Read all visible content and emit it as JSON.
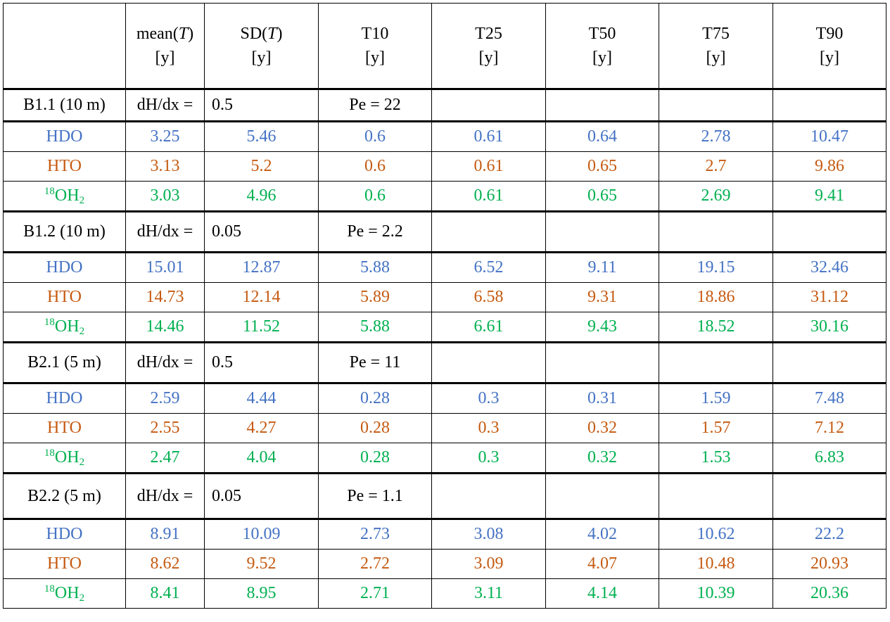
{
  "header": {
    "columns": [
      {
        "line1": "mean(",
        "italic": "T",
        "close": ")",
        "unit": "[y]"
      },
      {
        "line1": "SD(",
        "italic": "T",
        "close": ")",
        "unit": "[y]"
      },
      {
        "line1": "T10",
        "italic": "",
        "close": "",
        "unit": "[y]"
      },
      {
        "line1": "T25",
        "italic": "",
        "close": "",
        "unit": "[y]"
      },
      {
        "line1": "T50",
        "italic": "",
        "close": "",
        "unit": "[y]"
      },
      {
        "line1": "T75",
        "italic": "",
        "close": "",
        "unit": "[y]"
      },
      {
        "line1": "T90",
        "italic": "",
        "close": "",
        "unit": "[y]"
      }
    ]
  },
  "labels": {
    "hdo": "HDO",
    "hto": "HTO",
    "oh2_sup": "18",
    "oh2_main": "OH",
    "oh2_sub": "2",
    "gradient": "dH/dx ="
  },
  "colors": {
    "hdo": "#4472C4",
    "hto": "#C55A11",
    "oh2": "#00B050"
  },
  "sections": [
    {
      "name": "B1.1 (10 m)",
      "gradient": "0.5",
      "pe": "Pe = 22",
      "hdo": [
        "3.25",
        "5.46",
        "0.6",
        "0.61",
        "0.64",
        "2.78",
        "10.47"
      ],
      "hto": [
        "3.13",
        "5.2",
        "0.6",
        "0.61",
        "0.65",
        "2.7",
        "9.86"
      ],
      "oh2": [
        "3.03",
        "4.96",
        "0.6",
        "0.61",
        "0.65",
        "2.69",
        "9.41"
      ]
    },
    {
      "name": "B1.2 (10 m)",
      "gradient": "0.05",
      "pe": "Pe = 2.2",
      "hdo": [
        "15.01",
        "12.87",
        "5.88",
        "6.52",
        "9.11",
        "19.15",
        "32.46"
      ],
      "hto": [
        "14.73",
        "12.14",
        "5.89",
        "6.58",
        "9.31",
        "18.86",
        "31.12"
      ],
      "oh2": [
        "14.46",
        "11.52",
        "5.88",
        "6.61",
        "9.43",
        "18.52",
        "30.16"
      ]
    },
    {
      "name": "B2.1 (5 m)",
      "gradient": "0.5",
      "pe": "Pe = 11",
      "hdo": [
        "2.59",
        "4.44",
        "0.28",
        "0.3",
        "0.31",
        "1.59",
        "7.48"
      ],
      "hto": [
        "2.55",
        "4.27",
        "0.28",
        "0.3",
        "0.32",
        "1.57",
        "7.12"
      ],
      "oh2": [
        "2.47",
        "4.04",
        "0.28",
        "0.3",
        "0.32",
        "1.53",
        "6.83"
      ]
    },
    {
      "name": "B2.2 (5 m)",
      "gradient": "0.05",
      "pe": "Pe = 1.1",
      "hdo": [
        "8.91",
        "10.09",
        "2.73",
        "3.08",
        "4.02",
        "10.62",
        "22.2"
      ],
      "hto": [
        "8.62",
        "9.52",
        "2.72",
        "3.09",
        "4.07",
        "10.48",
        "20.93"
      ],
      "oh2": [
        "8.41",
        "8.95",
        "2.71",
        "3.11",
        "4.14",
        "10.39",
        "20.36"
      ]
    }
  ]
}
